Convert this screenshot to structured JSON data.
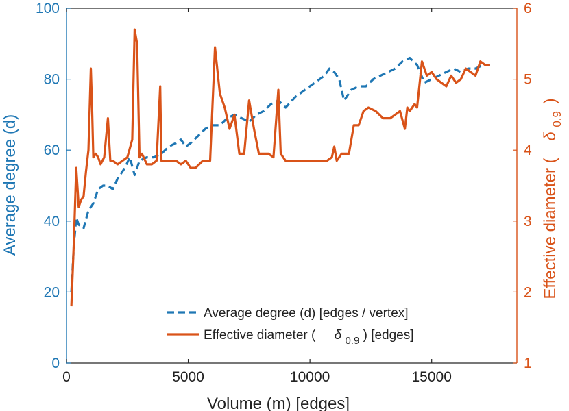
{
  "chart_data": {
    "type": "line",
    "title": "",
    "xlabel": "Volume (m) [edges]",
    "ylabel_left": "Average degree (d)",
    "ylabel_right": {
      "prefix": "Effective diameter (",
      "symbol": "δ",
      "subscript": "0.9",
      "suffix": ")"
    },
    "xlim": [
      0,
      18500
    ],
    "ylim_left": [
      0,
      100
    ],
    "ylim_right": [
      1,
      6
    ],
    "x_ticks": [
      "0",
      "5000",
      "10000",
      "15000"
    ],
    "x_tick_values": [
      0,
      5000,
      10000,
      15000
    ],
    "y_left_ticks": [
      "0",
      "20",
      "40",
      "60",
      "80",
      "100"
    ],
    "y_left_tick_values": [
      0,
      20,
      40,
      60,
      80,
      100
    ],
    "y_right_ticks": [
      "1",
      "2",
      "3",
      "4",
      "5",
      "6"
    ],
    "y_right_tick_values": [
      1,
      2,
      3,
      4,
      5,
      6
    ],
    "legend_position": "bottom-right",
    "colors": {
      "left_axis": "#1f77b4",
      "right_axis": "#d95319"
    },
    "series": [
      {
        "name": "Average degree (d) [edges / vertex]",
        "legend_label": "Average degree (d) [edges / vertex]",
        "axis": "left",
        "style": "dashed",
        "color": "#1f77b4",
        "x": [
          200,
          300,
          400,
          500,
          700,
          900,
          1100,
          1300,
          1500,
          1700,
          1900,
          2100,
          2400,
          2600,
          2800,
          3000,
          3300,
          3600,
          3900,
          4200,
          4500,
          4700,
          4900,
          5100,
          5400,
          5700,
          6000,
          6300,
          6600,
          6900,
          7200,
          7500,
          7800,
          8100,
          8400,
          8700,
          9000,
          9400,
          9800,
          10200,
          10600,
          10800,
          11000,
          11200,
          11400,
          11700,
          12000,
          12300,
          12600,
          12900,
          13200,
          13500,
          13800,
          14100,
          14400,
          14700,
          15000,
          15300,
          15600,
          15900,
          16200,
          16500,
          16800,
          17100,
          17400
        ],
        "values": [
          20,
          33,
          41,
          39,
          38,
          43,
          45,
          49,
          50,
          50,
          49,
          52,
          55,
          58,
          53,
          57,
          58,
          58,
          59,
          61,
          62,
          63,
          61,
          62,
          64,
          66,
          67,
          67,
          69,
          70,
          69,
          68,
          70,
          71,
          73,
          74,
          72,
          75,
          77,
          79,
          81,
          83,
          82,
          80,
          74,
          77,
          78,
          78,
          80,
          81,
          82,
          83,
          85,
          86,
          84,
          79,
          80,
          81,
          82,
          83,
          82,
          83,
          83,
          84,
          84
        ]
      },
      {
        "name": "Effective diameter (δ0.9) [edges]",
        "legend_prefix": "Effective diameter (",
        "legend_symbol": "δ",
        "legend_subscript": "0.9",
        "legend_suffix": ") [edges]",
        "axis": "right",
        "style": "solid",
        "color": "#d95319",
        "x": [
          200,
          300,
          400,
          500,
          600,
          700,
          800,
          900,
          1000,
          1050,
          1100,
          1200,
          1300,
          1400,
          1550,
          1700,
          1800,
          1900,
          2100,
          2300,
          2500,
          2700,
          2800,
          2900,
          3000,
          3100,
          3300,
          3500,
          3700,
          3850,
          3900,
          4000,
          4200,
          4500,
          4700,
          4900,
          5100,
          5300,
          5600,
          5900,
          6100,
          6300,
          6500,
          6700,
          6900,
          7100,
          7300,
          7500,
          7700,
          7900,
          8100,
          8300,
          8500,
          8700,
          8800,
          9000,
          9300,
          9700,
          10100,
          10500,
          10700,
          10900,
          11000,
          11100,
          11300,
          11600,
          11800,
          12000,
          12200,
          12400,
          12700,
          13000,
          13300,
          13500,
          13700,
          13900,
          14000,
          14100,
          14300,
          14400,
          14600,
          14800,
          15000,
          15200,
          15400,
          15600,
          15800,
          16000,
          16200,
          16400,
          16600,
          16800,
          17000,
          17200,
          17400
        ],
        "values": [
          1.8,
          2.7,
          3.75,
          3.2,
          3.3,
          3.35,
          3.7,
          4.0,
          5.15,
          4.6,
          3.9,
          3.95,
          3.9,
          3.8,
          3.9,
          4.45,
          3.85,
          3.85,
          3.8,
          3.85,
          3.9,
          4.15,
          5.7,
          5.5,
          3.9,
          3.95,
          3.8,
          3.8,
          3.85,
          4.9,
          3.85,
          3.85,
          3.85,
          3.85,
          3.8,
          3.85,
          3.75,
          3.75,
          3.85,
          3.85,
          5.45,
          4.8,
          4.6,
          4.3,
          4.5,
          3.95,
          3.95,
          4.7,
          4.3,
          3.95,
          3.95,
          3.95,
          3.9,
          4.85,
          3.95,
          3.85,
          3.85,
          3.85,
          3.85,
          3.85,
          3.85,
          3.9,
          4.05,
          3.85,
          3.95,
          3.95,
          4.35,
          4.35,
          4.55,
          4.6,
          4.55,
          4.45,
          4.45,
          4.5,
          4.55,
          4.3,
          4.6,
          4.55,
          4.65,
          4.6,
          5.25,
          5.05,
          5.1,
          5.0,
          4.95,
          4.9,
          5.05,
          4.95,
          5.0,
          5.15,
          5.1,
          5.05,
          5.25,
          5.2,
          5.2
        ]
      }
    ]
  }
}
